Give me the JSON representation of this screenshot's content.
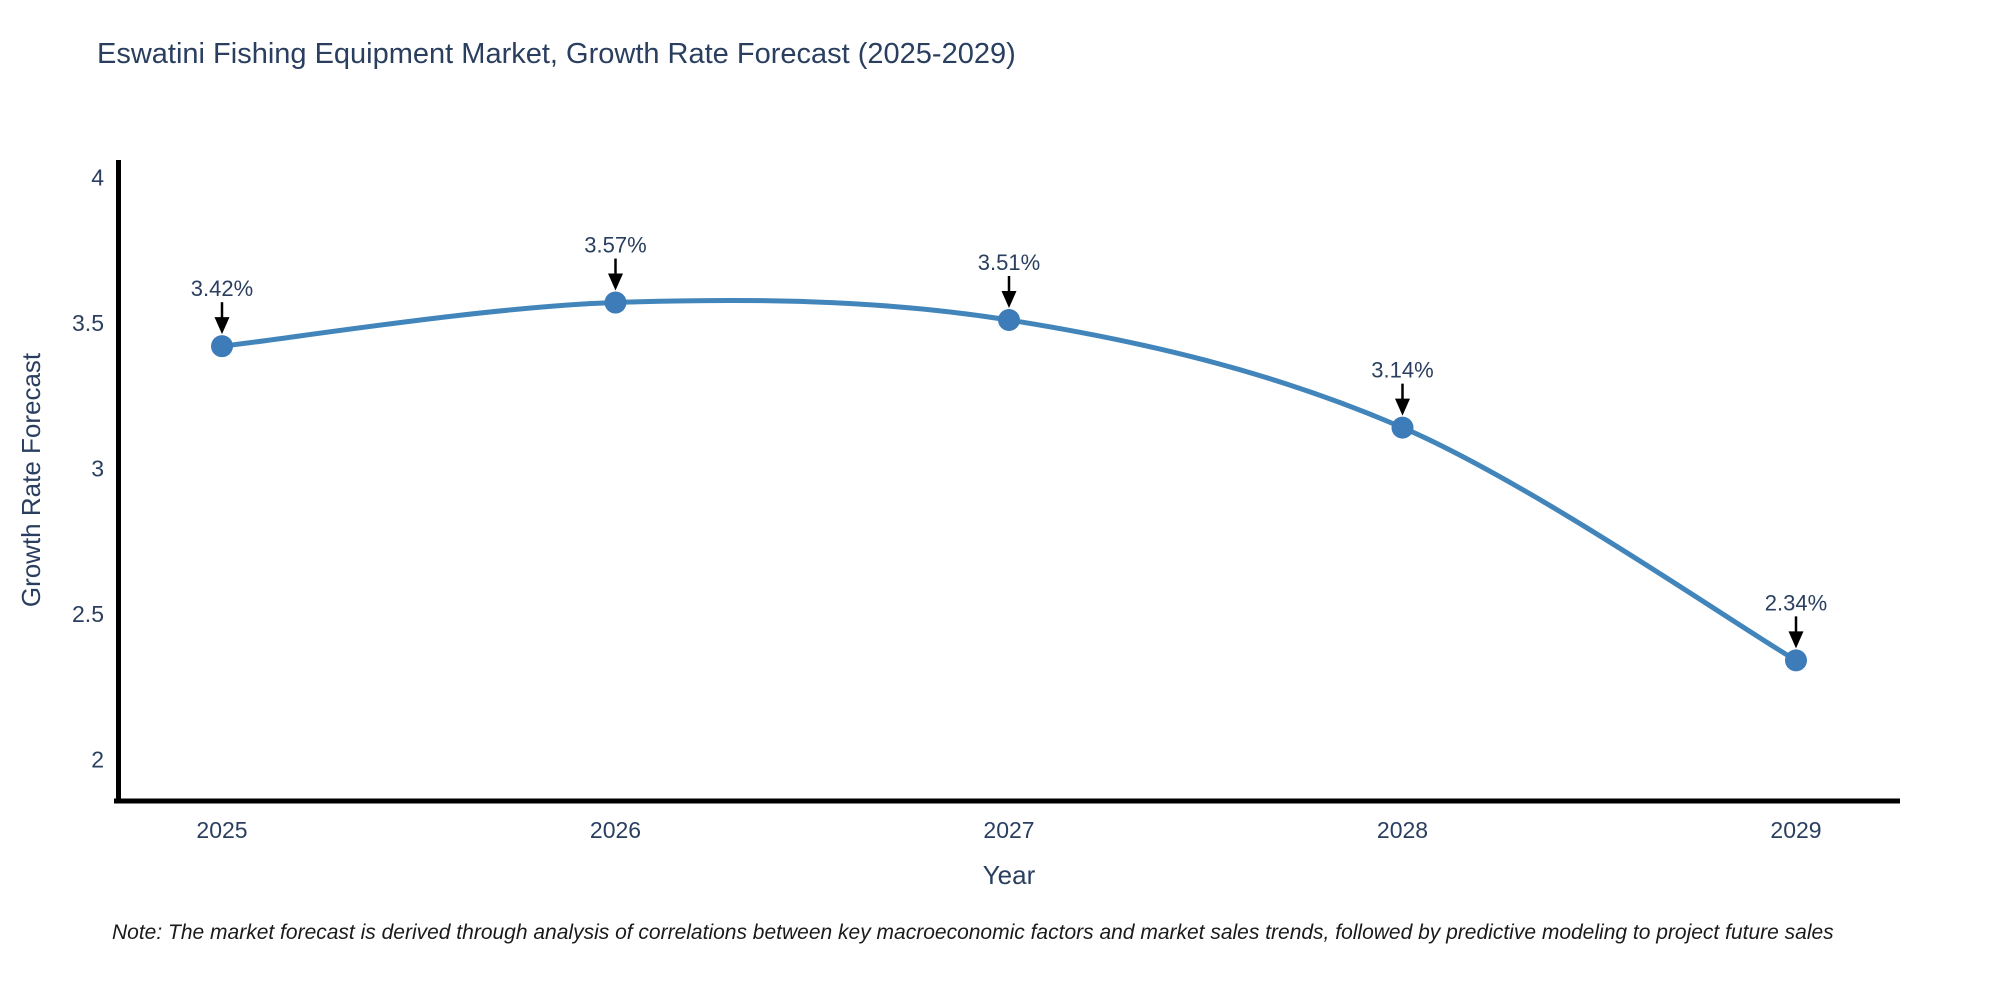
{
  "note": {
    "text": "Note: The market forecast is derived through analysis of correlations between key macroeconomic factors and market sales trends, followed by predictive modeling to project future sales"
  },
  "chart_data": {
    "type": "line",
    "title": "Eswatini Fishing Equipment Market, Growth Rate Forecast (2025-2029)",
    "x": [
      2025,
      2026,
      2027,
      2028,
      2029
    ],
    "y": [
      3.42,
      3.57,
      3.51,
      3.14,
      2.34
    ],
    "point_labels": [
      "3.42%",
      "3.57%",
      "3.51%",
      "3.14%",
      "2.34%"
    ],
    "xlabel": "Year",
    "ylabel": "Growth Rate Forecast",
    "yticks": [
      2,
      2.5,
      3,
      3.5,
      4
    ],
    "ytick_labels": [
      "2",
      "2.5",
      "3",
      "3.5",
      "4"
    ],
    "xtick_labels": [
      "2025",
      "2026",
      "2027",
      "2028",
      "2029"
    ],
    "ylim": [
      1.86,
      4.06
    ],
    "line_shape": "spline",
    "grid": false,
    "legend": "none",
    "annotations_style": "down-arrow",
    "colors": {
      "line": "#4285bb",
      "marker": "#3d7cb8",
      "axis": "#000000",
      "text": "#2a3f5f",
      "arrow": "#000000",
      "background": "#ffffff"
    }
  }
}
